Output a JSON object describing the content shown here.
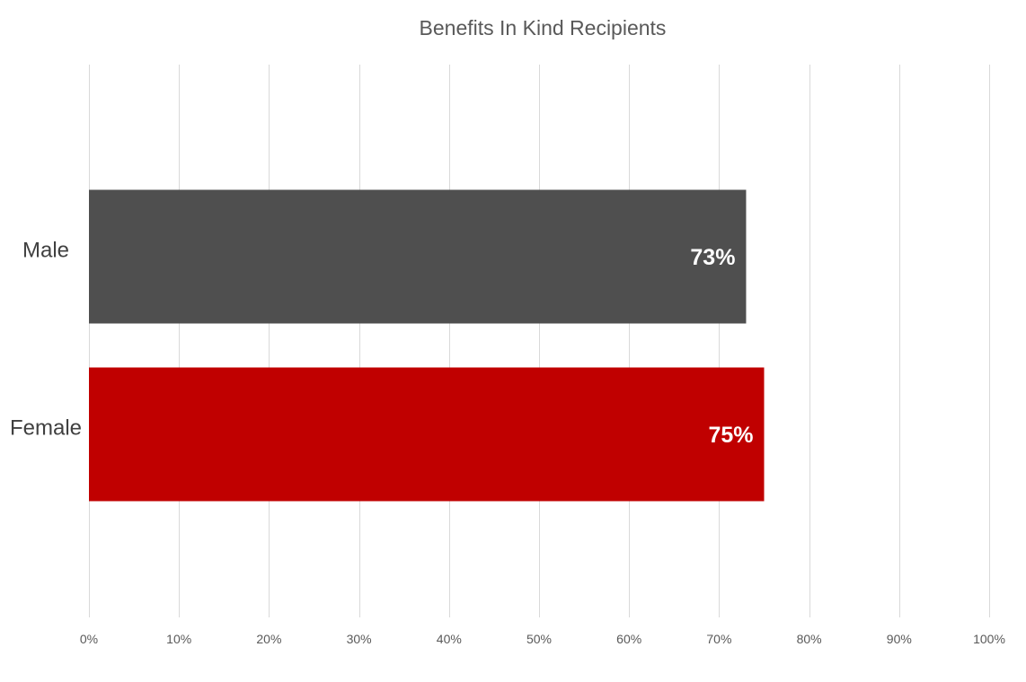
{
  "chart_data": {
    "type": "bar",
    "orientation": "horizontal",
    "title": "Benefits In Kind Recipients",
    "categories": [
      "Male",
      "Female"
    ],
    "values": [
      73,
      75
    ],
    "data_labels": [
      "73%",
      "75%"
    ],
    "bar_colors": [
      "#4f4f4f",
      "#c00000"
    ],
    "xlabel": "",
    "ylabel": "",
    "xlim": [
      0,
      100
    ],
    "x_ticks": [
      0,
      10,
      20,
      30,
      40,
      50,
      60,
      70,
      80,
      90,
      100
    ],
    "x_tick_labels": [
      "0%",
      "10%",
      "20%",
      "30%",
      "40%",
      "50%",
      "60%",
      "70%",
      "80%",
      "90%",
      "100%"
    ],
    "grid": "vertical",
    "legend": "none"
  }
}
